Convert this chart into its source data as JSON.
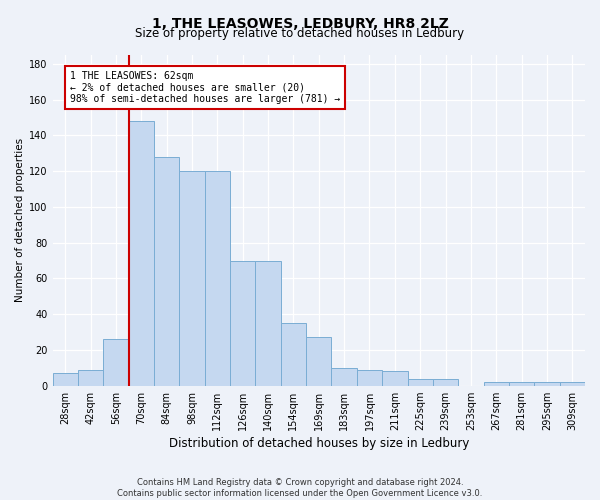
{
  "title": "1, THE LEASOWES, LEDBURY, HR8 2LZ",
  "subtitle": "Size of property relative to detached houses in Ledbury",
  "xlabel": "Distribution of detached houses by size in Ledbury",
  "ylabel": "Number of detached properties",
  "categories": [
    "28sqm",
    "42sqm",
    "56sqm",
    "70sqm",
    "84sqm",
    "98sqm",
    "112sqm",
    "126sqm",
    "140sqm",
    "154sqm",
    "169sqm",
    "183sqm",
    "197sqm",
    "211sqm",
    "225sqm",
    "239sqm",
    "253sqm",
    "267sqm",
    "281sqm",
    "295sqm",
    "309sqm"
  ],
  "values": [
    7,
    9,
    26,
    148,
    128,
    120,
    120,
    70,
    70,
    35,
    27,
    10,
    9,
    8,
    4,
    4,
    0,
    2,
    2,
    2,
    2
  ],
  "bar_color": "#c5d8f0",
  "bar_edge_color": "#7aadd4",
  "annotation_text": "1 THE LEASOWES: 62sqm\n← 2% of detached houses are smaller (20)\n98% of semi-detached houses are larger (781) →",
  "annotation_box_color": "#ffffff",
  "annotation_box_edge_color": "#cc0000",
  "vline_color": "#cc0000",
  "vline_x_index": 2.5,
  "ylim": [
    0,
    185
  ],
  "yticks": [
    0,
    20,
    40,
    60,
    80,
    100,
    120,
    140,
    160,
    180
  ],
  "footer": "Contains HM Land Registry data © Crown copyright and database right 2024.\nContains public sector information licensed under the Open Government Licence v3.0.",
  "bg_color": "#eef2f9",
  "plot_bg_color": "#eef2f9",
  "title_fontsize": 10,
  "subtitle_fontsize": 8.5,
  "xlabel_fontsize": 8.5,
  "ylabel_fontsize": 7.5,
  "tick_fontsize": 7,
  "annotation_fontsize": 7,
  "footer_fontsize": 6
}
